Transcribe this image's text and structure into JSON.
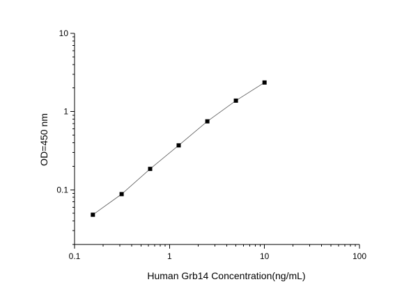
{
  "chart_data": {
    "type": "scatter",
    "title": "",
    "xlabel": "Human Grb14 Concentration(ng/mL)",
    "ylabel": "OD=450 nm",
    "xscale": "log",
    "yscale": "log",
    "xlim": [
      0.1,
      100
    ],
    "ylim": [
      0.02,
      10
    ],
    "x_ticks": [
      0.1,
      1,
      10,
      100
    ],
    "x_tick_labels": [
      "0.1",
      "1",
      "10",
      "100"
    ],
    "y_ticks": [
      0.1,
      1,
      10
    ],
    "y_tick_labels": [
      "0.1",
      "1",
      "10"
    ],
    "grid": false,
    "legend": "none",
    "series": [
      {
        "marker": "square",
        "fit_line": true,
        "x": [
          0.156,
          0.313,
          0.625,
          1.25,
          2.5,
          5,
          10
        ],
        "y": [
          0.048,
          0.088,
          0.185,
          0.37,
          0.75,
          1.38,
          2.35
        ]
      }
    ]
  }
}
